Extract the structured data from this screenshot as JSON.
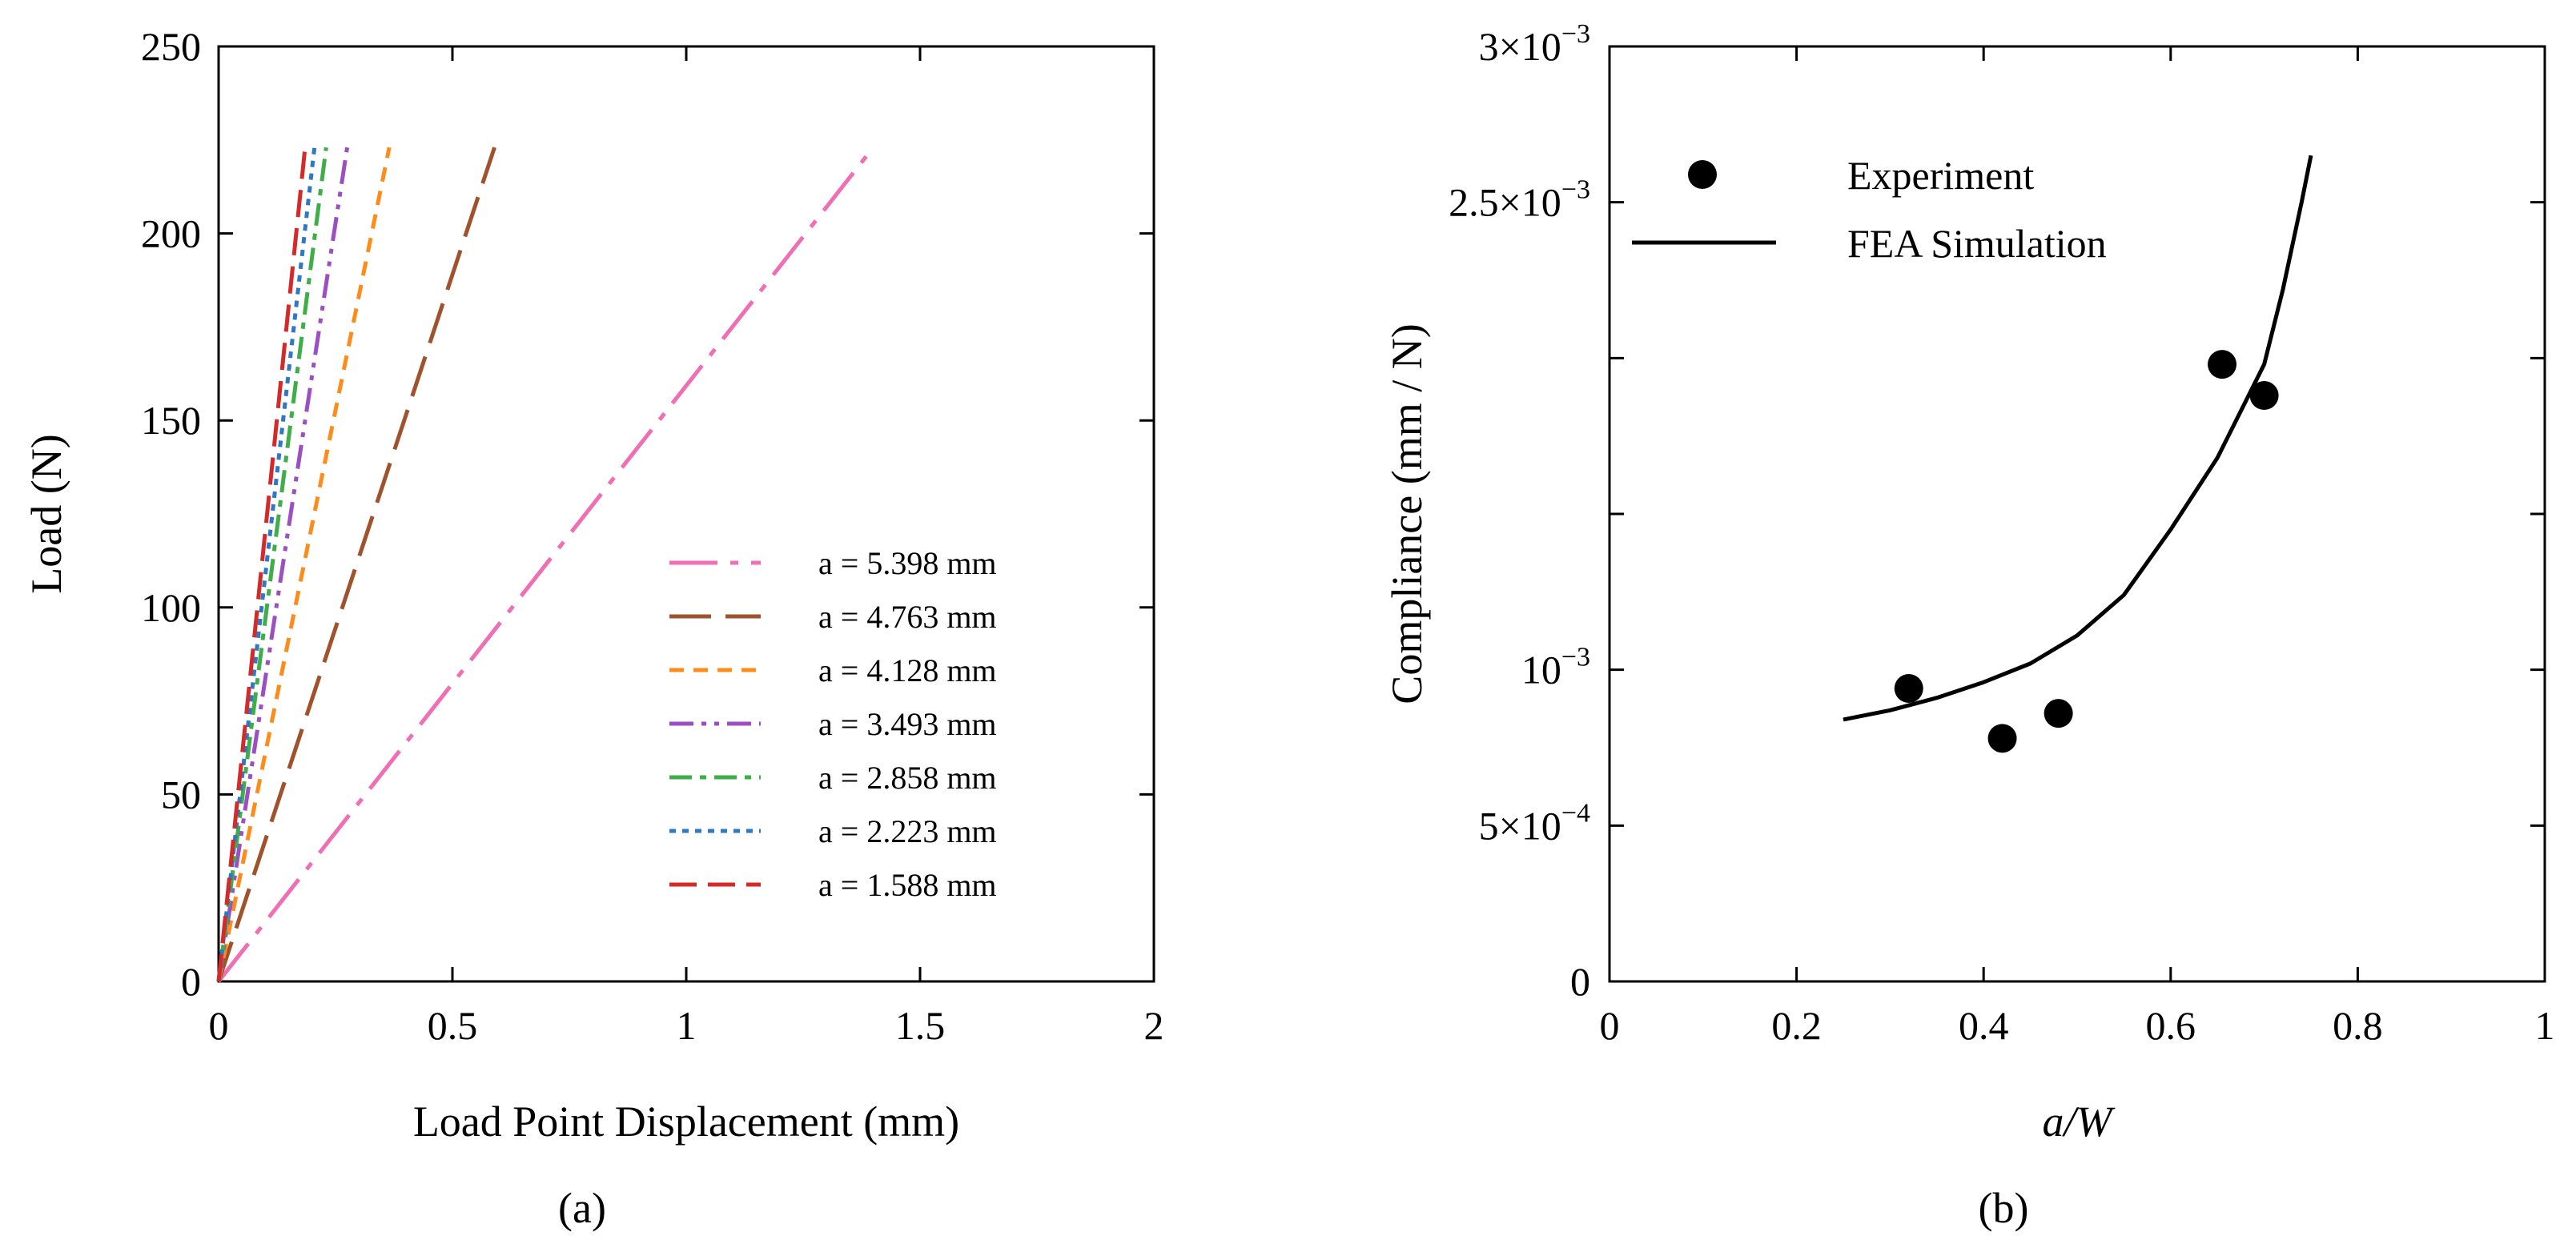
{
  "chart_data": [
    {
      "type": "line",
      "caption": "(a)",
      "xlabel": "Load Point Displacement (mm)",
      "ylabel": "Load (N)",
      "xlim": [
        0,
        2
      ],
      "ylim": [
        0,
        250
      ],
      "xticks": [
        0,
        0.5,
        1,
        1.5,
        2
      ],
      "yticks": [
        0,
        50,
        100,
        150,
        200,
        250
      ],
      "xtick_labels": [
        "0",
        "0.5",
        "1",
        "1.5",
        "2"
      ],
      "ytick_labels": [
        "0",
        "50",
        "100",
        "150",
        "200",
        "250"
      ],
      "legend_position": "center-right",
      "series": [
        {
          "name": "a = 5.398 mm",
          "color": "#f06eb4",
          "dash": "dashdot-long",
          "x": [
            0,
            1.4
          ],
          "y": [
            0,
            223
          ]
        },
        {
          "name": "a = 4.763 mm",
          "color": "#a0522d",
          "dash": "long",
          "x": [
            0,
            0.59
          ],
          "y": [
            0,
            223
          ]
        },
        {
          "name": "a = 4.128 mm",
          "color": "#ff8c1a",
          "dash": "short",
          "x": [
            0,
            0.365
          ],
          "y": [
            0,
            223
          ]
        },
        {
          "name": "a = 3.493 mm",
          "color": "#9b4fc1",
          "dash": "dashdotdot",
          "x": [
            0,
            0.275
          ],
          "y": [
            0,
            223
          ]
        },
        {
          "name": "a = 2.858 mm",
          "color": "#3fae49",
          "dash": "dashdot",
          "x": [
            0,
            0.23
          ],
          "y": [
            0,
            223
          ]
        },
        {
          "name": "a = 2.223 mm",
          "color": "#2f78c4",
          "dash": "dotted",
          "x": [
            0,
            0.205
          ],
          "y": [
            0,
            223
          ]
        },
        {
          "name": "a = 1.588 mm",
          "color": "#d42a2a",
          "dash": "medium",
          "x": [
            0,
            0.185
          ],
          "y": [
            0,
            223
          ]
        }
      ]
    },
    {
      "type": "scatter",
      "caption": "(b)",
      "xlabel": "a/W",
      "ylabel": "Compliance (mm / N)",
      "xlim": [
        0,
        1
      ],
      "ylim": [
        0,
        0.003
      ],
      "xticks": [
        0,
        0.2,
        0.4,
        0.6,
        0.8,
        1
      ],
      "xtick_labels": [
        "0",
        "0.2",
        "0.4",
        "0.6",
        "0.8",
        "1"
      ],
      "yticks_labeled": [
        0,
        0.0005,
        0.001,
        0.0025,
        0.003
      ],
      "ytick_labels": [
        {
          "value": 0,
          "mant": "0",
          "exp": ""
        },
        {
          "value": 0.0005,
          "mant": "5×10",
          "exp": "−4"
        },
        {
          "value": 0.001,
          "mant": "10",
          "exp": "−3"
        },
        {
          "value": 0.0025,
          "mant": "2.5×10",
          "exp": "−3"
        },
        {
          "value": 0.003,
          "mant": "3×10",
          "exp": "−3"
        }
      ],
      "yticks_minor": [
        0.0015,
        0.002
      ],
      "legend_position": "top-left",
      "series": [
        {
          "name": "Experiment",
          "kind": "markers",
          "x": [
            0.32,
            0.42,
            0.48,
            0.655,
            0.7
          ],
          "y": [
            0.00094,
            0.00078,
            0.00086,
            0.00198,
            0.00188
          ]
        },
        {
          "name": "FEA Simulation",
          "kind": "line",
          "x": [
            0.25,
            0.3,
            0.35,
            0.4,
            0.45,
            0.5,
            0.55,
            0.6,
            0.65,
            0.7,
            0.72,
            0.74,
            0.75
          ],
          "y": [
            0.00084,
            0.00087,
            0.00091,
            0.00096,
            0.00102,
            0.00111,
            0.00124,
            0.00145,
            0.00168,
            0.00198,
            0.00222,
            0.0025,
            0.00265
          ]
        }
      ]
    }
  ]
}
